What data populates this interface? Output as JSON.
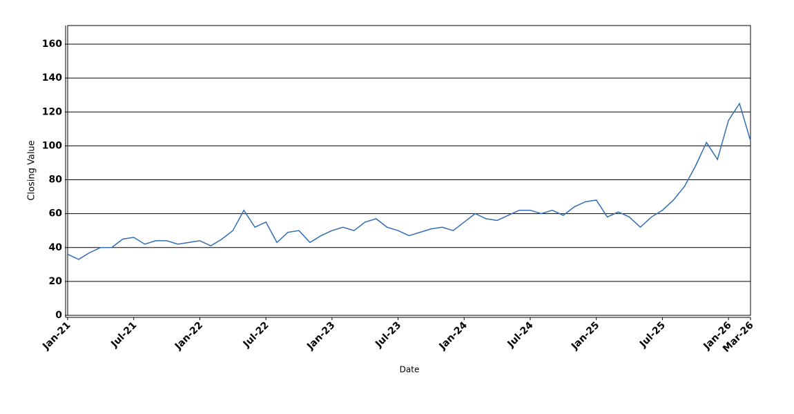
{
  "chart_data": {
    "type": "line",
    "x_label": "Date",
    "y_label": "Closing Value",
    "x": [
      "2021-01",
      "2021-02",
      "2021-03",
      "2021-04",
      "2021-05",
      "2021-06",
      "2021-07",
      "2021-08",
      "2021-09",
      "2021-10",
      "2021-11",
      "2021-12",
      "2022-01",
      "2022-02",
      "2022-03",
      "2022-04",
      "2022-05",
      "2022-06",
      "2022-07",
      "2022-08",
      "2022-09",
      "2022-10",
      "2022-11",
      "2022-12",
      "2023-01",
      "2023-02",
      "2023-03",
      "2023-04",
      "2023-05",
      "2023-06",
      "2023-07",
      "2023-08",
      "2023-09",
      "2023-10",
      "2023-11",
      "2023-12",
      "2024-01",
      "2024-02",
      "2024-03",
      "2024-04",
      "2024-05",
      "2024-06",
      "2024-07",
      "2024-08",
      "2024-09",
      "2024-10",
      "2024-11",
      "2024-12",
      "2025-01",
      "2025-02",
      "2025-03",
      "2025-04",
      "2025-05",
      "2025-06",
      "2025-07",
      "2025-08",
      "2025-09",
      "2025-10",
      "2025-11",
      "2025-12",
      "2026-01",
      "2026-02",
      "2026-03"
    ],
    "series": [
      {
        "name": "Closing Value",
        "color": "#2f6db5",
        "values": [
          36,
          33,
          37,
          40,
          40,
          45,
          46,
          42,
          44,
          44,
          42,
          43,
          44,
          41,
          45,
          50,
          62,
          52,
          55,
          43,
          49,
          50,
          43,
          47,
          50,
          52,
          50,
          55,
          57,
          52,
          50,
          47,
          49,
          51,
          52,
          50,
          55,
          60,
          57,
          56,
          59,
          62,
          62,
          60,
          62,
          59,
          64,
          67,
          68,
          58,
          61,
          58,
          52,
          58,
          62,
          68,
          76,
          88,
          102,
          92,
          115,
          125,
          103
        ]
      }
    ],
    "xlim": [
      "2021-01",
      "2026-03"
    ],
    "xticks": [
      {
        "value": "2021-01",
        "label": "Jan-21"
      },
      {
        "value": "2021-07",
        "label": "Jul-21"
      },
      {
        "value": "2022-01",
        "label": "Jan-22"
      },
      {
        "value": "2022-07",
        "label": "Jul-22"
      },
      {
        "value": "2023-01",
        "label": "Jan-23"
      },
      {
        "value": "2023-07",
        "label": "Jul-23"
      },
      {
        "value": "2024-01",
        "label": "Jan-24"
      },
      {
        "value": "2024-07",
        "label": "Jul-24"
      },
      {
        "value": "2025-01",
        "label": "Jan-25"
      },
      {
        "value": "2025-07",
        "label": "Jul-25"
      },
      {
        "value": "2026-01",
        "label": "Jan-26"
      },
      {
        "value": "2026-03",
        "label": "Mar-26"
      }
    ],
    "ylim": [
      0,
      171
    ],
    "yticks": [
      0,
      20,
      40,
      60,
      80,
      100,
      120,
      140,
      160
    ],
    "grid": true
  }
}
